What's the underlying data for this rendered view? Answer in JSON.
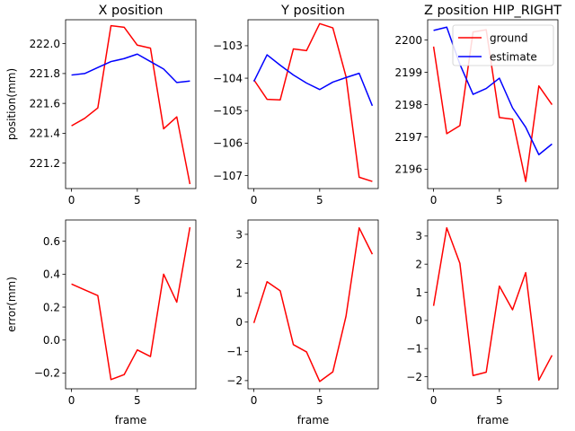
{
  "chart_data": [
    {
      "type": "line",
      "title": "X position",
      "xlabel": "",
      "ylabel": "position(mm)",
      "x": [
        0,
        1,
        2,
        3,
        4,
        5,
        6,
        7,
        8,
        9
      ],
      "xlim": [
        -0.45,
        9.45
      ],
      "ylim": [
        221.03,
        222.16
      ],
      "xticks": [
        0,
        5
      ],
      "yticks": [
        221.2,
        221.4,
        221.6,
        221.8,
        222.0
      ],
      "ytick_labels": [
        "221.2",
        "221.4",
        "221.6",
        "221.8",
        "222.0"
      ],
      "series": [
        {
          "name": "ground",
          "color": "#ff0000",
          "values": [
            221.45,
            221.5,
            221.57,
            222.12,
            222.11,
            221.99,
            221.97,
            221.43,
            221.51,
            221.06
          ]
        },
        {
          "name": "estimate",
          "color": "#0000ff",
          "values": [
            221.79,
            221.8,
            221.84,
            221.88,
            221.9,
            221.93,
            221.88,
            221.83,
            221.74,
            221.75
          ]
        }
      ]
    },
    {
      "type": "line",
      "title": "Y position",
      "xlabel": "",
      "ylabel": "",
      "x": [
        0,
        1,
        2,
        3,
        4,
        5,
        6,
        7,
        8,
        9
      ],
      "xlim": [
        -0.45,
        9.45
      ],
      "ylim": [
        -107.4,
        -102.2
      ],
      "xticks": [
        0,
        5
      ],
      "yticks": [
        -107,
        -106,
        -105,
        -104,
        -103
      ],
      "ytick_labels": [
        "−107",
        "−106",
        "−105",
        "−104",
        "−103"
      ],
      "series": [
        {
          "name": "ground",
          "color": "#ff0000",
          "values": [
            -104.05,
            -104.65,
            -104.67,
            -103.1,
            -103.15,
            -102.32,
            -102.45,
            -103.95,
            -107.05,
            -107.18
          ]
        },
        {
          "name": "estimate",
          "color": "#0000ff",
          "values": [
            -104.1,
            -103.28,
            -103.6,
            -103.9,
            -104.15,
            -104.35,
            -104.12,
            -103.98,
            -103.85,
            -104.85
          ]
        }
      ]
    },
    {
      "type": "line",
      "title": "Z position HIP_RIGHT",
      "xlabel": "",
      "ylabel": "",
      "x": [
        0,
        1,
        2,
        3,
        4,
        5,
        6,
        7,
        8,
        9
      ],
      "xlim": [
        -0.45,
        9.45
      ],
      "ylim": [
        2195.4,
        2200.63
      ],
      "xticks": [
        0,
        5
      ],
      "yticks": [
        2196,
        2197,
        2198,
        2199,
        2200
      ],
      "ytick_labels": [
        "2196",
        "2197",
        "2198",
        "2199",
        "2200"
      ],
      "legend": {
        "placement": "upper right",
        "entries": [
          "ground",
          "estimate"
        ]
      },
      "series": [
        {
          "name": "ground",
          "color": "#ff0000",
          "values": [
            2199.8,
            2197.1,
            2197.35,
            2200.25,
            2200.32,
            2197.6,
            2197.55,
            2195.62,
            2198.58,
            2198.0
          ]
        },
        {
          "name": "estimate",
          "color": "#0000ff",
          "values": [
            2200.3,
            2200.4,
            2199.25,
            2198.32,
            2198.5,
            2198.82,
            2197.9,
            2197.3,
            2196.45,
            2196.78
          ]
        }
      ]
    },
    {
      "type": "line",
      "title": "",
      "xlabel": "frame",
      "ylabel": "error(mm)",
      "x": [
        0,
        1,
        2,
        3,
        4,
        5,
        6,
        7,
        8,
        9
      ],
      "xlim": [
        -0.45,
        9.45
      ],
      "ylim": [
        -0.296,
        0.729
      ],
      "xticks": [
        0,
        5
      ],
      "yticks": [
        -0.2,
        0.0,
        0.2,
        0.4,
        0.6
      ],
      "ytick_labels": [
        "−0.2",
        "0.0",
        "0.2",
        "0.4",
        "0.6"
      ],
      "series": [
        {
          "name": "error",
          "color": "#ff0000",
          "values": [
            0.34,
            0.305,
            0.27,
            -0.24,
            -0.21,
            -0.06,
            -0.1,
            0.4,
            0.23,
            0.685
          ]
        }
      ]
    },
    {
      "type": "line",
      "title": "",
      "xlabel": "frame",
      "ylabel": "",
      "x": [
        0,
        1,
        2,
        3,
        4,
        5,
        6,
        7,
        8,
        9
      ],
      "xlim": [
        -0.45,
        9.45
      ],
      "ylim": [
        -2.28,
        3.49
      ],
      "xticks": [
        0,
        5
      ],
      "yticks": [
        -2,
        -1,
        0,
        1,
        2,
        3
      ],
      "ytick_labels": [
        "−2",
        "−1",
        "0",
        "1",
        "2",
        "3"
      ],
      "series": [
        {
          "name": "error",
          "color": "#ff0000",
          "values": [
            -0.03,
            1.38,
            1.07,
            -0.77,
            -1.02,
            -2.03,
            -1.7,
            0.2,
            3.22,
            2.32
          ]
        }
      ]
    },
    {
      "type": "line",
      "title": "",
      "xlabel": "frame",
      "ylabel": "",
      "x": [
        0,
        1,
        2,
        3,
        4,
        5,
        6,
        7,
        8,
        9
      ],
      "xlim": [
        -0.45,
        9.45
      ],
      "ylim": [
        -2.43,
        3.57
      ],
      "xticks": [
        0,
        5
      ],
      "yticks": [
        -2,
        -1,
        0,
        1,
        2,
        3
      ],
      "ytick_labels": [
        "−2",
        "−1",
        "0",
        "1",
        "2",
        "3"
      ],
      "series": [
        {
          "name": "error",
          "color": "#ff0000",
          "values": [
            0.52,
            3.29,
            2.03,
            -1.96,
            -1.84,
            1.22,
            0.38,
            1.7,
            -2.12,
            -1.24
          ]
        }
      ]
    }
  ]
}
